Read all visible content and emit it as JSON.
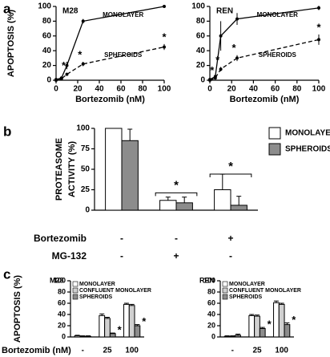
{
  "chart_data": [
    {
      "type": "line",
      "panel": "a",
      "title": "M28",
      "ylabel": "APOPTOSIS (%)",
      "xlabel": "Bortezomib (nM)",
      "x": [
        0,
        5,
        10,
        25,
        100
      ],
      "xlim": [
        0,
        100
      ],
      "xticks": [
        0,
        20,
        40,
        60,
        80,
        100
      ],
      "ylim": [
        0,
        100
      ],
      "yticks": [
        0,
        20,
        40,
        60,
        80,
        100
      ],
      "series": [
        {
          "name": "MONOLAYER",
          "color": "#000000",
          "dash": false,
          "values": [
            1,
            3,
            20,
            80,
            100
          ],
          "errors": [
            0,
            1,
            5,
            3,
            1
          ]
        },
        {
          "name": "SPHEROIDS",
          "color": "#000000",
          "dash": true,
          "values": [
            0,
            2,
            8,
            22,
            45
          ],
          "errors": [
            0,
            1,
            2,
            3,
            4
          ],
          "annotations": [
            null,
            null,
            "*",
            "*",
            "*"
          ]
        }
      ]
    },
    {
      "type": "line",
      "title": "REN",
      "xlabel": "Bortezomib (nM)",
      "x": [
        0,
        5,
        10,
        25,
        100
      ],
      "xlim": [
        0,
        100
      ],
      "xticks": [
        0,
        20,
        40,
        60,
        80,
        100
      ],
      "ylim": [
        0,
        100
      ],
      "yticks": [
        0,
        20,
        40,
        60,
        80,
        100
      ],
      "series": [
        {
          "name": "MONOLAYER",
          "color": "#000000",
          "dash": false,
          "values": [
            1,
            5,
            60,
            83,
            98
          ],
          "errors": [
            0,
            2,
            20,
            8,
            3
          ]
        },
        {
          "name": "SPHEROIDS",
          "color": "#000000",
          "dash": true,
          "values": [
            0,
            3,
            15,
            30,
            55
          ],
          "errors": [
            0,
            1,
            3,
            4,
            7
          ],
          "annotations": [
            null,
            "*",
            "*",
            "*",
            "*"
          ]
        }
      ]
    },
    {
      "type": "bar",
      "panel": "b",
      "ylabel": [
        "PROTEASOME",
        "ACTIVITY (%)"
      ],
      "ylim": [
        0,
        100
      ],
      "yticks": [
        0,
        25,
        50,
        75,
        100
      ],
      "legend": "right",
      "series": [
        {
          "name": "MONOLAYER",
          "color": "#ffffff",
          "values": [
            100,
            12,
            25
          ],
          "errors": [
            0,
            4,
            19
          ]
        },
        {
          "name": "SPHEROIDS",
          "color": "#8c8c8c",
          "values": [
            85,
            9,
            6
          ],
          "errors": [
            14,
            7,
            11
          ]
        }
      ],
      "rows": [
        {
          "label": "Bortezomib",
          "values": [
            "-",
            "-",
            "+"
          ]
        },
        {
          "label": "MG-132",
          "values": [
            "-",
            "+",
            "-"
          ]
        }
      ],
      "significance": [
        null,
        {
          "text": "*",
          "y": 30
        },
        {
          "text": "*",
          "y": 53
        }
      ]
    },
    {
      "type": "bar",
      "panel": "c",
      "title": "M28",
      "ylabel": "APOPTOSIS (%)",
      "xlabel": "Bortezomib (nM)",
      "categories": [
        "-",
        "25",
        "100"
      ],
      "ylim": [
        0,
        100
      ],
      "yticks": [
        0,
        20,
        40,
        60,
        80,
        100
      ],
      "legend": "upper left",
      "series": [
        {
          "name": "MONOLAYER",
          "color": "#ffffff",
          "values": [
            2,
            38,
            58
          ],
          "errors": [
            1,
            3,
            2
          ]
        },
        {
          "name": "CONFLUENT MONOLAYER",
          "color": "#d0d0d0",
          "values": [
            1,
            33,
            56
          ],
          "errors": [
            1,
            2,
            2
          ]
        },
        {
          "name": "SPHEROIDS",
          "color": "#8c8c8c",
          "values": [
            1,
            6,
            20
          ],
          "errors": [
            1,
            1,
            2
          ],
          "annotations": [
            null,
            "*",
            "*"
          ]
        }
      ]
    },
    {
      "type": "bar",
      "title": "REN",
      "categories": [
        "-",
        "25",
        "100"
      ],
      "ylim": [
        0,
        100
      ],
      "yticks": [
        0,
        20,
        40,
        60,
        80,
        100
      ],
      "legend": "upper left",
      "series": [
        {
          "name": "MONOLAYER",
          "color": "#ffffff",
          "values": [
            1,
            38,
            61
          ],
          "errors": [
            1,
            2,
            3
          ]
        },
        {
          "name": "CONFLUENT MONOLAYER",
          "color": "#d0d0d0",
          "values": [
            1,
            37,
            58
          ],
          "errors": [
            1,
            2,
            2
          ]
        },
        {
          "name": "SPHEROIDS",
          "color": "#8c8c8c",
          "values": [
            3,
            15,
            22
          ],
          "errors": [
            2,
            2,
            3
          ],
          "annotations": [
            null,
            "*",
            "*"
          ]
        }
      ]
    }
  ]
}
